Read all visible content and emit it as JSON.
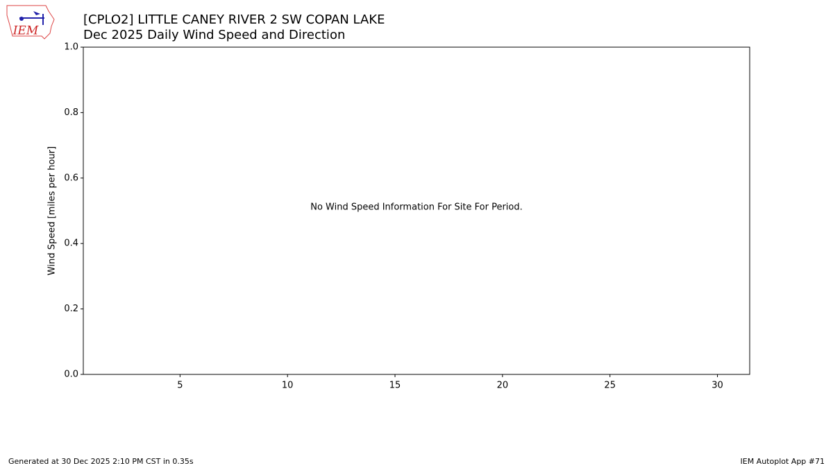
{
  "chart_data": {
    "type": "line",
    "title": "[CPLO2] LITTLE CANEY RIVER 2 SW COPAN LAKE",
    "subtitle": "Dec 2025 Daily Wind Speed and Direction",
    "y_label": "Wind Speed [miles per hour]",
    "annotation": "No Wind Speed Information For Site For Period.",
    "xlim": [
      0.5,
      31.5
    ],
    "xticks": [
      5,
      10,
      15,
      20,
      25,
      30
    ],
    "ylim": [
      0,
      1
    ],
    "yticks": [
      {
        "value": 0,
        "label": "0.0"
      },
      0.2,
      0.4,
      0.6,
      0.8,
      {
        "value": 1,
        "label": "1.0"
      }
    ],
    "grid": false
  },
  "logo": {
    "text": "IEM"
  },
  "footer": {
    "left": "Generated at 30 Dec 2025 2:10 PM CST in 0.35s",
    "right": "IEM Autoplot App #71"
  }
}
